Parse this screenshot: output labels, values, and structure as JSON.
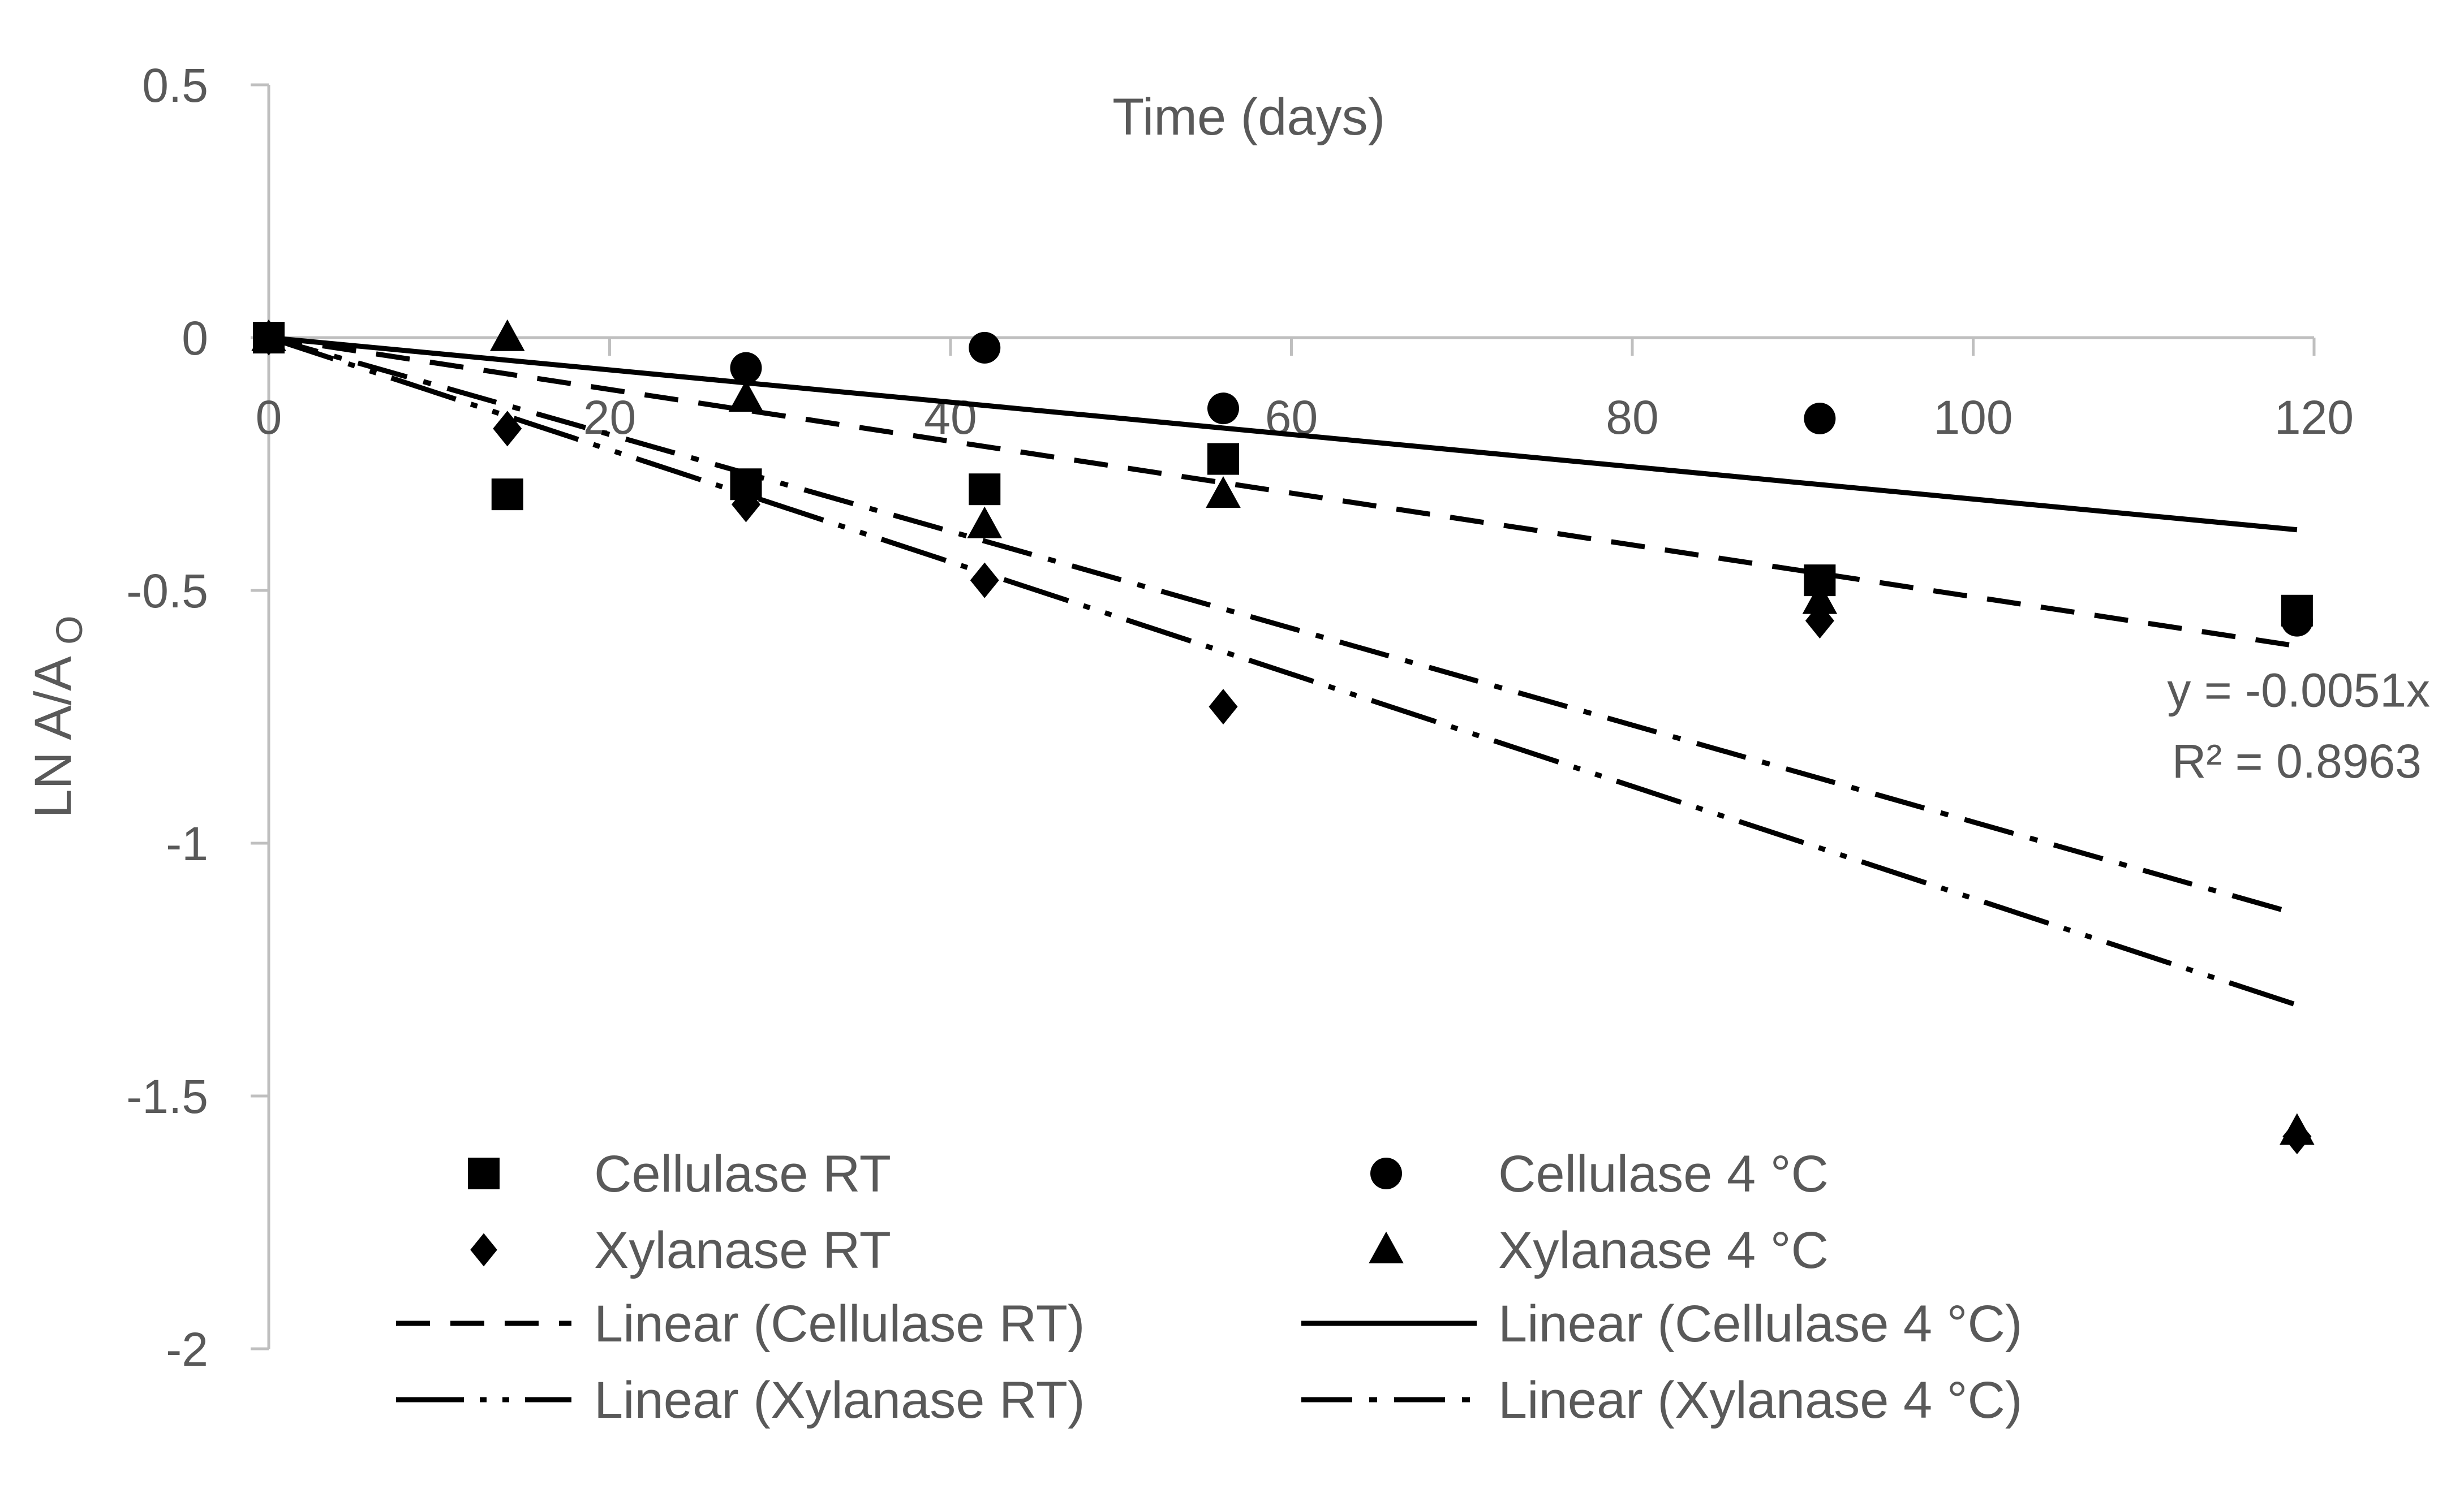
{
  "chart_data": {
    "type": "scatter",
    "title": "",
    "xlabel": "Time (days)",
    "ylabel_main": "LN A/A",
    "ylabel_sub": "O",
    "xlim": [
      0,
      120
    ],
    "ylim": [
      -2,
      0.5
    ],
    "x_ticks": [
      0,
      20,
      40,
      60,
      80,
      100,
      120
    ],
    "y_ticks": [
      0.5,
      0,
      -0.5,
      -1,
      -1.5,
      -2
    ],
    "x_tick_labels": [
      "0",
      "20",
      "40",
      "60",
      "80",
      "100",
      "120"
    ],
    "y_tick_labels": [
      "0.5",
      "0",
      "-0.5",
      "-1",
      "-1.5",
      "-2"
    ],
    "grid": false,
    "legend_position": "bottom",
    "series": [
      {
        "name": "Cellulase RT",
        "marker": "square",
        "x": [
          0,
          14,
          28,
          42,
          56,
          91,
          119
        ],
        "y": [
          0,
          -0.31,
          -0.29,
          -0.3,
          -0.24,
          -0.48,
          -0.54
        ]
      },
      {
        "name": "Cellulase 4 °C",
        "marker": "circle",
        "x": [
          0,
          28,
          42,
          56,
          91,
          119
        ],
        "y": [
          0,
          -0.06,
          -0.02,
          -0.14,
          -0.16,
          -0.56
        ]
      },
      {
        "name": "Xylanase RT",
        "marker": "diamond",
        "x": [
          0,
          14,
          28,
          42,
          56,
          91,
          119
        ],
        "y": [
          0,
          -0.18,
          -0.33,
          -0.48,
          -0.73,
          -0.56,
          -1.58
        ]
      },
      {
        "name": "Xylanase 4 °C",
        "marker": "triangle",
        "x": [
          0,
          14,
          28,
          42,
          56,
          91,
          119
        ],
        "y": [
          0,
          0,
          -0.12,
          -0.37,
          -0.31,
          -0.52,
          -1.57
        ]
      }
    ],
    "trendlines": [
      {
        "name": "Linear (Cellulase RT)",
        "dash": "dash",
        "x": [
          0,
          119
        ],
        "y": [
          0,
          -0.61
        ]
      },
      {
        "name": "Linear (Cellulase 4 °C)",
        "dash": "solid",
        "x": [
          0,
          119
        ],
        "y": [
          0,
          -0.38
        ]
      },
      {
        "name": "Linear (Xylanase RT)",
        "dash": "long-dash-dot-dot",
        "x": [
          0,
          119
        ],
        "y": [
          0,
          -1.32
        ]
      },
      {
        "name": "Linear (Xylanase 4 °C)",
        "dash": "long-dash-dot",
        "x": [
          0,
          119
        ],
        "y": [
          0,
          -1.14
        ]
      }
    ],
    "annotations": [
      {
        "text": "y = -0.0051x",
        "anchor_x": 119,
        "anchor_y": -0.73
      },
      {
        "text": "R² = 0.8963",
        "anchor_x": 119,
        "anchor_y": -0.87
      }
    ],
    "legend": [
      {
        "label": "Cellulase RT",
        "kind": "marker",
        "style": "square"
      },
      {
        "label": "Cellulase 4 °C",
        "kind": "marker",
        "style": "circle"
      },
      {
        "label": "Xylanase RT",
        "kind": "marker",
        "style": "diamond"
      },
      {
        "label": "Xylanase 4 °C",
        "kind": "marker",
        "style": "triangle"
      },
      {
        "label": "Linear (Cellulase RT)",
        "kind": "line",
        "style": "dash"
      },
      {
        "label": "Linear (Cellulase 4 °C)",
        "kind": "line",
        "style": "solid"
      },
      {
        "label": "Linear (Xylanase RT)",
        "kind": "line",
        "style": "long-dash-dot-dot"
      },
      {
        "label": "Linear (Xylanase 4 °C)",
        "kind": "line",
        "style": "long-dash-dot"
      }
    ],
    "colors": {
      "axis": "#bfbfbf",
      "text": "#595959",
      "marks": "#000000"
    }
  }
}
